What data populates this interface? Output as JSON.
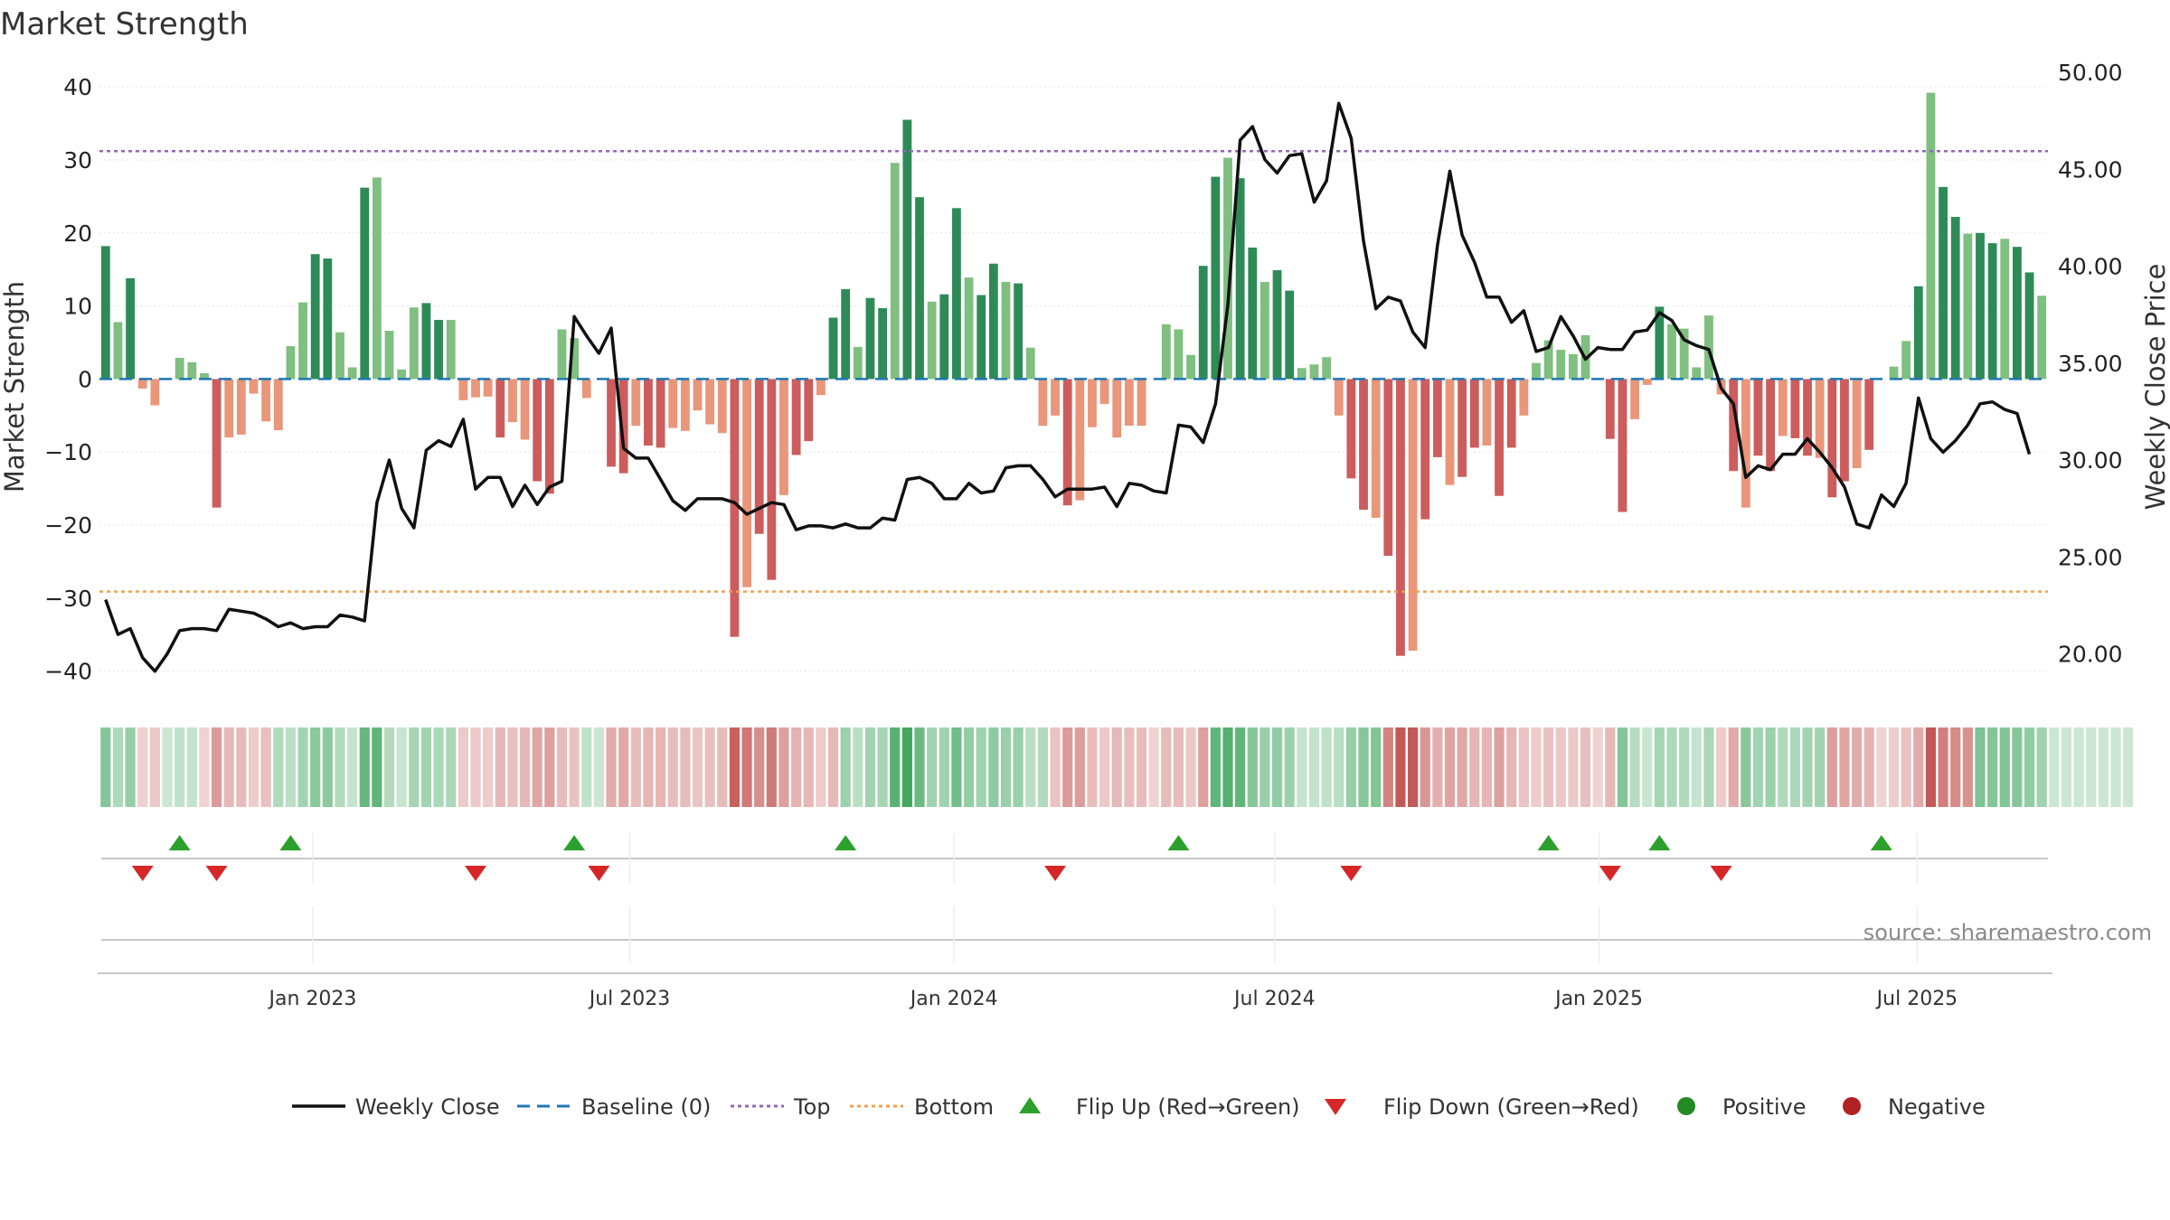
{
  "chart_data": {
    "type": "bar",
    "title": "Market Strength",
    "ylabel": "Market Strength",
    "y2label": "Weekly Close Price",
    "ylim": [
      -44,
      42
    ],
    "y2lim": [
      17.6,
      50.0
    ],
    "yticks": [
      40,
      30,
      20,
      10,
      0,
      -10,
      -20,
      -30,
      -40
    ],
    "yticklabels": [
      "40",
      "30",
      "20",
      "10",
      "0",
      "−10",
      "−20",
      "−30",
      "−40"
    ],
    "y2ticks": [
      50,
      45,
      40,
      35,
      30,
      25,
      20
    ],
    "y2ticklabels": [
      "50.00",
      "45.00",
      "40.00",
      "35.00",
      "30.00",
      "25.00",
      "20.00"
    ],
    "top_threshold": 31.2,
    "bottom_threshold": -29.1,
    "x_start": "2022-09-05",
    "x_end": "2025-09-15",
    "date_ticks": [
      {
        "label": "Jan 2023",
        "week": 17.3
      },
      {
        "label": "Jul 2023",
        "week": 43.0
      },
      {
        "label": "Jan 2024",
        "week": 69.3
      },
      {
        "label": "Jul 2024",
        "week": 95.3
      },
      {
        "label": "Jan 2025",
        "week": 121.6
      },
      {
        "label": "Jul 2025",
        "week": 147.4
      }
    ],
    "strength": [
      18.2,
      7.8,
      13.8,
      -1.3,
      -3.6,
      0,
      2.9,
      2.3,
      0.8,
      -17.6,
      -8.0,
      -7.6,
      -2.0,
      -5.8,
      -7.0,
      4.5,
      10.5,
      17.1,
      16.5,
      6.4,
      1.6,
      26.2,
      27.6,
      6.6,
      1.3,
      9.8,
      10.4,
      8.1,
      8.1,
      -2.9,
      -2.5,
      -2.4,
      -8.0,
      -5.9,
      -8.3,
      -14.0,
      -15.7,
      6.8,
      5.6,
      -2.6,
      0,
      -12.0,
      -12.9,
      -6.4,
      -9.1,
      -9.4,
      -6.7,
      -7.1,
      -4.3,
      -6.2,
      -7.4,
      -35.3,
      -28.5,
      -21.2,
      -27.5,
      -15.9,
      -10.4,
      -8.5,
      -2.2,
      8.4,
      12.3,
      4.4,
      11.1,
      9.7,
      29.6,
      35.5,
      24.9,
      10.6,
      11.6,
      23.4,
      13.9,
      11.5,
      15.8,
      13.3,
      13.1,
      4.3,
      -6.4,
      -5.0,
      -17.3,
      -16.6,
      -6.6,
      -3.4,
      -8.0,
      -6.4,
      -6.4,
      0,
      7.5,
      6.8,
      3.3,
      15.5,
      27.7,
      30.3,
      27.5,
      18.0,
      13.3,
      14.9,
      12.1,
      1.5,
      2.0,
      3.0,
      -5.0,
      -13.6,
      -17.9,
      -19.0,
      -24.2,
      -37.9,
      -37.2,
      -19.2,
      -10.7,
      -14.5,
      -13.4,
      -9.4,
      -9.1,
      -16.0,
      -9.4,
      -5.0,
      2.2,
      5.3,
      4.0,
      3.4,
      6.0,
      0,
      -8.2,
      -18.2,
      -5.5,
      -0.8,
      9.9,
      7.5,
      6.9,
      1.6,
      8.7,
      -2.1,
      -12.6,
      -17.6,
      -10.5,
      -12.6,
      -7.8,
      -8.1,
      -10.5,
      -10.8,
      -16.2,
      -14.0,
      -12.2,
      -9.7,
      0,
      1.7,
      5.2,
      12.7,
      39.2,
      26.3,
      22.2,
      19.9,
      20.0,
      18.6,
      19.2,
      18.1,
      14.6,
      11.4
    ],
    "close": [
      22.8,
      21.0,
      21.3,
      19.8,
      19.1,
      20.0,
      21.2,
      21.3,
      21.3,
      21.2,
      22.3,
      22.2,
      22.1,
      21.8,
      21.4,
      21.6,
      21.3,
      21.4,
      21.4,
      22.0,
      21.9,
      21.7,
      27.8,
      30.0,
      27.5,
      26.5,
      30.5,
      31.0,
      30.7,
      32.1,
      28.5,
      29.1,
      29.1,
      27.6,
      28.7,
      27.7,
      28.6,
      28.9,
      37.4,
      36.4,
      35.5,
      36.8,
      30.6,
      30.1,
      30.1,
      29.0,
      27.9,
      27.4,
      28.0,
      28.0,
      28.0,
      27.8,
      27.2,
      27.5,
      27.8,
      27.7,
      26.4,
      26.6,
      26.6,
      26.5,
      26.7,
      26.5,
      26.5,
      27.0,
      26.9,
      29.0,
      29.1,
      28.8,
      28.0,
      28.0,
      28.8,
      28.3,
      28.4,
      29.6,
      29.7,
      29.7,
      29.0,
      28.1,
      28.5,
      28.5,
      28.5,
      28.6,
      27.6,
      28.8,
      28.7,
      28.4,
      28.3,
      31.8,
      31.7,
      30.9,
      32.9,
      38.0,
      46.5,
      47.2,
      45.5,
      44.8,
      45.7,
      45.8,
      43.3,
      44.4,
      48.4,
      46.6,
      41.3,
      37.8,
      38.4,
      38.2,
      36.6,
      35.8,
      41.1,
      44.9,
      41.6,
      40.2,
      38.4,
      38.4,
      37.1,
      37.7,
      35.6,
      35.8,
      37.4,
      36.4,
      35.2,
      35.8,
      35.7,
      35.7,
      36.6,
      36.7,
      37.6,
      37.2,
      36.2,
      35.9,
      35.7,
      33.7,
      32.9,
      29.1,
      29.7,
      29.5,
      30.3,
      30.3,
      31.1,
      30.4,
      29.6,
      28.6,
      26.7,
      26.5,
      28.2,
      27.6,
      28.8,
      33.2,
      31.1,
      30.4,
      31.0,
      31.8,
      32.9,
      33.0,
      32.6,
      32.4,
      30.3
    ],
    "heat_strip": [
      1,
      1,
      1,
      -1,
      -1,
      1,
      1,
      1,
      -1,
      -1,
      -1,
      -1,
      -1,
      -1,
      1,
      1,
      1,
      1,
      1,
      1,
      1,
      1,
      1,
      1,
      1,
      1,
      1,
      1,
      1,
      -1,
      -1,
      -1,
      -1,
      -1,
      -1,
      -1,
      -1,
      -1,
      -1,
      1,
      1,
      -1,
      -1,
      -1,
      -1,
      -1,
      -1,
      -1,
      -1,
      -1,
      -1,
      -1,
      -1,
      -1,
      -1,
      -1,
      -1,
      -1,
      -1,
      -1,
      1,
      1,
      1,
      1,
      1,
      1,
      1,
      1,
      1,
      1,
      1,
      1,
      1,
      1,
      1,
      1,
      1,
      -1,
      -1,
      -1,
      -1,
      -1,
      -1,
      -1,
      -1,
      -1,
      -1,
      -1,
      -1,
      -1,
      1,
      1,
      1,
      1,
      1,
      1,
      1,
      1,
      1,
      1,
      1,
      1,
      1,
      1,
      -1,
      -1,
      -1,
      -1,
      -1,
      -1,
      -1,
      -1,
      -1,
      -1,
      -1,
      -1,
      -1,
      -1,
      -1,
      -1,
      -1,
      -1,
      -1,
      1,
      1,
      1,
      1,
      1,
      1,
      1,
      1,
      -1,
      -1,
      1,
      1,
      1,
      1,
      1,
      1,
      1,
      -1,
      -1,
      -1,
      -1,
      -1,
      -1,
      -1,
      -1,
      -1,
      -1,
      -1,
      -1,
      1,
      1,
      1,
      1,
      1,
      1,
      1,
      1,
      1,
      1,
      1,
      1,
      1
    ],
    "flip_up_weeks": [
      6,
      15,
      38,
      60,
      87,
      117,
      126,
      144
    ],
    "flip_down_weeks": [
      3,
      9,
      30,
      40,
      77,
      101,
      122,
      131
    ],
    "colors": {
      "pos_strong": "#2e8b57",
      "pos_weak": "#7fbf7f",
      "neg_strong": "#cd5c5c",
      "neg_weak": "#e9967a",
      "close_line": "#111111",
      "baseline": "#1f77b4",
      "top": "#9467bd",
      "bottom": "#f0a050",
      "flip_up": "#2ca02c",
      "flip_down": "#d62728",
      "positive": "#228b22",
      "negative": "#b22222"
    }
  },
  "legend": {
    "weekly_close": "Weekly Close",
    "baseline": "Baseline (0)",
    "top": "Top",
    "bottom": "Bottom",
    "flip_up": "Flip Up (Red→Green)",
    "flip_down": "Flip Down (Green→Red)",
    "positive": "Positive",
    "negative": "Negative"
  },
  "source": "source: sharemaestro.com"
}
